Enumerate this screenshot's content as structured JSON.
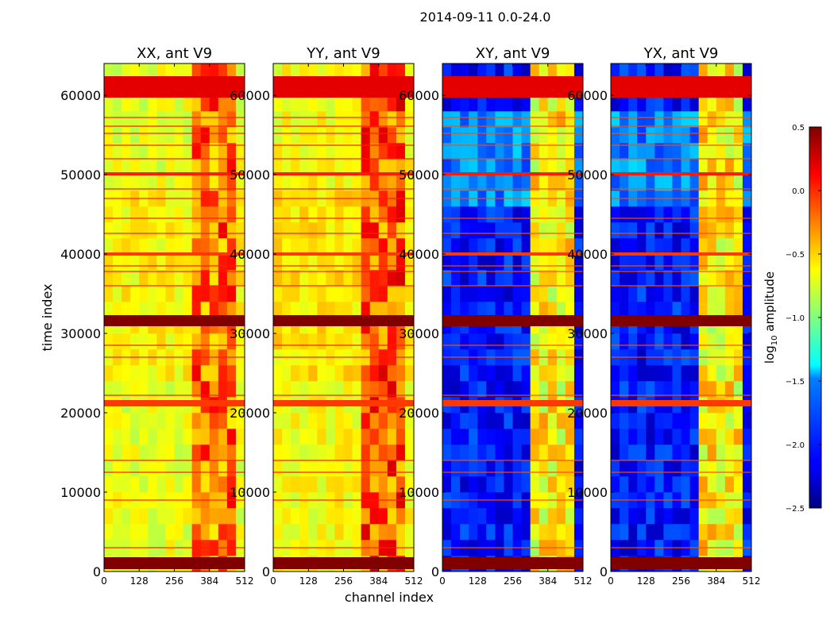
{
  "chart_data": {
    "type": "heatmap",
    "title": "2014-09-11 0.0-24.0",
    "xlabel": "channel index",
    "ylabel": "time index",
    "xlim": [
      0,
      512
    ],
    "ylim": [
      0,
      64000
    ],
    "x_ticks": [
      0,
      128,
      256,
      384,
      512
    ],
    "y_ticks": [
      0,
      10000,
      20000,
      30000,
      40000,
      50000,
      60000
    ],
    "panels": [
      {
        "title": "XX, ant V9",
        "pol": "XX",
        "baseline": 0.6,
        "flare": 0.85
      },
      {
        "title": "YY, ant V9",
        "pol": "YY",
        "baseline": 0.62,
        "flare": 0.88
      },
      {
        "title": "XY, ant V9",
        "pol": "XY",
        "baseline": 0.14,
        "flare": 0.7
      },
      {
        "title": "YX, ant V9",
        "pol": "YX",
        "baseline": 0.14,
        "flare": 0.7
      }
    ],
    "flagged_time_bands": [
      {
        "start": 300,
        "end": 1800,
        "level": 1.0
      },
      {
        "start": 20800,
        "end": 21600,
        "level": 0.82
      },
      {
        "start": 30900,
        "end": 32300,
        "level": 1.0
      },
      {
        "start": 39800,
        "end": 40200,
        "level": 0.82
      },
      {
        "start": 49900,
        "end": 50300,
        "level": 0.85
      },
      {
        "start": 59700,
        "end": 62400,
        "level": 0.9
      }
    ],
    "bright_channel_range": [
      320,
      470
    ],
    "colorbar": {
      "label": "log10 amplitude",
      "label_main": "log",
      "label_sub": "10",
      "label_rest": " amplitude",
      "min": -2.5,
      "max": 0.5,
      "ticks": [
        "0.5",
        "0.0",
        "−0.5",
        "−1.0",
        "−1.5",
        "−2.0",
        "−2.5"
      ],
      "tick_values": [
        0.5,
        0.0,
        -0.5,
        -1.0,
        -1.5,
        -2.0,
        -2.5
      ],
      "colormap": "jet"
    }
  }
}
